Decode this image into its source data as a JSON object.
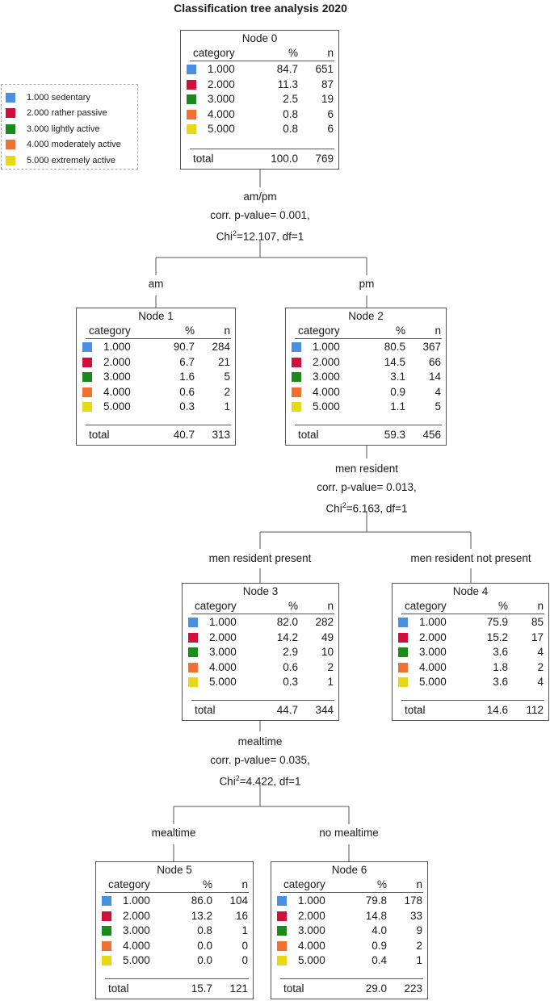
{
  "title": "Classification tree analysis  2020",
  "legend": [
    {
      "label": "1.000 sedentary",
      "color": "#4a90e2"
    },
    {
      "label": "2.000 rather passive",
      "color": "#d0103a"
    },
    {
      "label": "3.000 lightly active",
      "color": "#1a8a1a"
    },
    {
      "label": "4.000 moderately active",
      "color": "#f07030"
    },
    {
      "label": "5.000 extremely active",
      "color": "#e6d814"
    }
  ],
  "columns": {
    "category": "category",
    "pct": "%",
    "n": "n"
  },
  "total_label": "total",
  "nodes": [
    {
      "id": "node0",
      "title": "Node 0",
      "rows": [
        {
          "cat": "1.000",
          "pct": "84.7",
          "n": "651"
        },
        {
          "cat": "2.000",
          "pct": "11.3",
          "n": "87"
        },
        {
          "cat": "3.000",
          "pct": "2.5",
          "n": "19"
        },
        {
          "cat": "4.000",
          "pct": "0.8",
          "n": "6"
        },
        {
          "cat": "5.000",
          "pct": "0.8",
          "n": "6"
        }
      ],
      "total_pct": "100.0",
      "total_n": "769"
    },
    {
      "id": "node1",
      "title": "Node 1",
      "rows": [
        {
          "cat": "1.000",
          "pct": "90.7",
          "n": "284"
        },
        {
          "cat": "2.000",
          "pct": "6.7",
          "n": "21"
        },
        {
          "cat": "3.000",
          "pct": "1.6",
          "n": "5"
        },
        {
          "cat": "4.000",
          "pct": "0.6",
          "n": "2"
        },
        {
          "cat": "5.000",
          "pct": "0.3",
          "n": "1"
        }
      ],
      "total_pct": "40.7",
      "total_n": "313"
    },
    {
      "id": "node2",
      "title": "Node 2",
      "rows": [
        {
          "cat": "1.000",
          "pct": "80.5",
          "n": "367"
        },
        {
          "cat": "2.000",
          "pct": "14.5",
          "n": "66"
        },
        {
          "cat": "3.000",
          "pct": "3.1",
          "n": "14"
        },
        {
          "cat": "4.000",
          "pct": "0.9",
          "n": "4"
        },
        {
          "cat": "5.000",
          "pct": "1.1",
          "n": "5"
        }
      ],
      "total_pct": "59.3",
      "total_n": "456"
    },
    {
      "id": "node3",
      "title": "Node 3",
      "rows": [
        {
          "cat": "1.000",
          "pct": "82.0",
          "n": "282"
        },
        {
          "cat": "2.000",
          "pct": "14.2",
          "n": "49"
        },
        {
          "cat": "3.000",
          "pct": "2.9",
          "n": "10"
        },
        {
          "cat": "4.000",
          "pct": "0.6",
          "n": "2"
        },
        {
          "cat": "5.000",
          "pct": "0.3",
          "n": "1"
        }
      ],
      "total_pct": "44.7",
      "total_n": "344"
    },
    {
      "id": "node4",
      "title": "Node 4",
      "rows": [
        {
          "cat": "1.000",
          "pct": "75.9",
          "n": "85"
        },
        {
          "cat": "2.000",
          "pct": "15.2",
          "n": "17"
        },
        {
          "cat": "3.000",
          "pct": "3.6",
          "n": "4"
        },
        {
          "cat": "4.000",
          "pct": "1.8",
          "n": "2"
        },
        {
          "cat": "5.000",
          "pct": "3.6",
          "n": "4"
        }
      ],
      "total_pct": "14.6",
      "total_n": "112"
    },
    {
      "id": "node5",
      "title": "Node 5",
      "rows": [
        {
          "cat": "1.000",
          "pct": "86.0",
          "n": "104"
        },
        {
          "cat": "2.000",
          "pct": "13.2",
          "n": "16"
        },
        {
          "cat": "3.000",
          "pct": "0.8",
          "n": "1"
        },
        {
          "cat": "4.000",
          "pct": "0.0",
          "n": "0"
        },
        {
          "cat": "5.000",
          "pct": "0.0",
          "n": "0"
        }
      ],
      "total_pct": "15.7",
      "total_n": "121"
    },
    {
      "id": "node6",
      "title": "Node 6",
      "rows": [
        {
          "cat": "1.000",
          "pct": "79.8",
          "n": "178"
        },
        {
          "cat": "2.000",
          "pct": "14.8",
          "n": "33"
        },
        {
          "cat": "3.000",
          "pct": "4.0",
          "n": "9"
        },
        {
          "cat": "4.000",
          "pct": "0.9",
          "n": "2"
        },
        {
          "cat": "5.000",
          "pct": "0.4",
          "n": "1"
        }
      ],
      "total_pct": "29.0",
      "total_n": "223"
    }
  ],
  "splits": [
    {
      "variable": "am/pm",
      "pvalue": "corr. p-value= 0.001,",
      "chi_prefix": "Chi",
      "chi_sup": "2",
      "chi_rest": "=12.107, df=1"
    },
    {
      "variable": "men resident",
      "pvalue": "corr. p-value= 0.013,",
      "chi_prefix": "Chi",
      "chi_sup": "2",
      "chi_rest": "=6.163, df=1"
    },
    {
      "variable": "mealtime",
      "pvalue": "corr. p-value= 0.035,",
      "chi_prefix": "Chi",
      "chi_sup": "2",
      "chi_rest": "=4.422, df=1"
    }
  ],
  "branches": [
    "am",
    "pm",
    "men resident present",
    "men resident not present",
    "mealtime",
    "no mealtime"
  ]
}
